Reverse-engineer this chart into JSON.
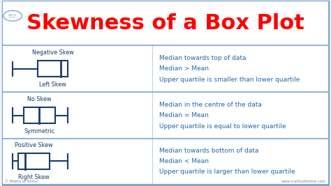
{
  "title": "Skewness of a Box Plot",
  "title_color": "#FF0000",
  "title_fontsize": 22,
  "background_color": "#F0F4FA",
  "border_color": "#7BA7D4",
  "box_edge_color": "#1A3A6B",
  "text_color": "#2166AC",
  "rows": [
    {
      "top_label": "Negative Skew",
      "bottom_label": "Left Skew",
      "wl": 0.04,
      "wr": 0.43,
      "bl": 0.22,
      "br": 0.43,
      "med": 0.38,
      "lines": [
        "Median towards top of data",
        "Median > Mean",
        "Upper quartile is smaller than lower quartile"
      ]
    },
    {
      "top_label": "No Skew",
      "bottom_label": "Symmetric",
      "wl": 0.04,
      "wr": 0.43,
      "bl": 0.12,
      "br": 0.34,
      "med": 0.23,
      "lines": [
        "Median in the centre of the data",
        "Median = Mean",
        "Upper quartile is equal to lower quartile"
      ]
    },
    {
      "top_label": "Positive Skew",
      "bottom_label": "Right Skew",
      "wl": 0.04,
      "wr": 0.43,
      "bl": 0.08,
      "br": 0.3,
      "med": 0.13,
      "lines": [
        "Median towards bottom of data",
        "Median < Mean",
        "Upper quartile is larger than lower quartile"
      ]
    }
  ],
  "footer_left": "© Maths at Home",
  "footer_right": "www.mathsathome.com"
}
